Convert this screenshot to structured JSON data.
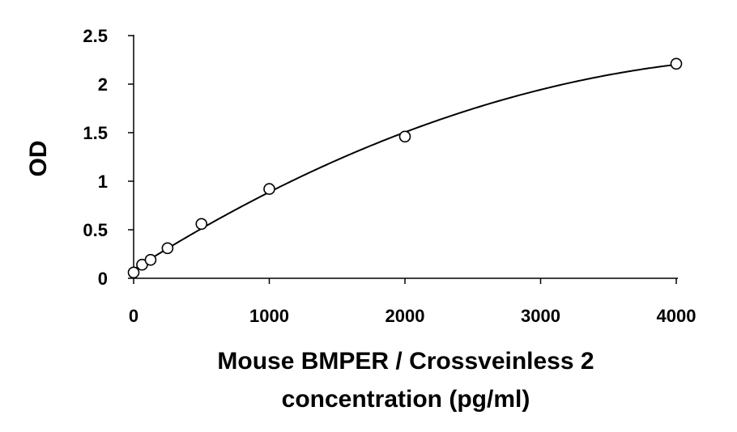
{
  "chart_data": {
    "type": "scatter",
    "xlabel_lines": [
      "Mouse BMPER / Crossveinless 2",
      "concentration (pg/ml)"
    ],
    "ylabel": "OD",
    "xlim": [
      0,
      4000
    ],
    "ylim": [
      0,
      2.5
    ],
    "xticks": [
      0,
      1000,
      2000,
      3000,
      4000
    ],
    "xtick_labels": [
      "0",
      "1000",
      "2000",
      "3000",
      "4000"
    ],
    "yticks": [
      0,
      0.5,
      1,
      1.5,
      2,
      2.5
    ],
    "ytick_labels": [
      "0",
      "0.5",
      "1",
      "1.5",
      "2",
      "2.5"
    ],
    "grid": false,
    "series": [
      {
        "x": [
          0,
          62.5,
          125,
          250,
          500,
          1000,
          2000,
          4000
        ],
        "y": [
          0.06,
          0.14,
          0.19,
          0.31,
          0.56,
          0.92,
          1.46,
          2.21
        ]
      }
    ],
    "trendline": {
      "type": "polynomial",
      "x_range": [
        0,
        4000
      ]
    }
  }
}
